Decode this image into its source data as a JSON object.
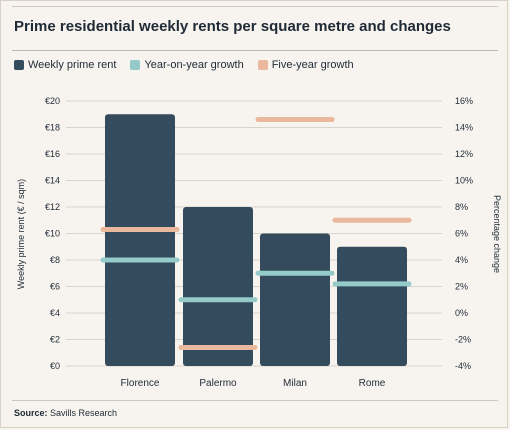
{
  "title": "Prime residential weekly rents per square metre and changes",
  "source_label": "Source:",
  "source_text": "Savills Research",
  "colors": {
    "rent": "#334b5c",
    "yoy": "#94cbc8",
    "five_year": "#eab89c",
    "grid": "#d9d4cb",
    "background": "#f7f4ef"
  },
  "chart_data": {
    "type": "bar",
    "categories": [
      "Florence",
      "Palermo",
      "Milan",
      "Rome"
    ],
    "series": [
      {
        "name": "Weekly prime rent",
        "axis": "left",
        "values": [
          19,
          12,
          10,
          9
        ]
      },
      {
        "name": "Year-on-year growth",
        "axis": "right",
        "values": [
          4.0,
          1.0,
          3.0,
          2.2
        ]
      },
      {
        "name": "Five-year growth",
        "axis": "right",
        "values": [
          6.3,
          -2.6,
          14.6,
          7.0
        ]
      }
    ],
    "ylabel": "Weekly prime rent (€ / sqm)",
    "y2label": "Percentage change",
    "ylim": [
      0,
      20
    ],
    "y2lim": [
      -4,
      16
    ],
    "yticks": [
      "€0",
      "€2",
      "€4",
      "€6",
      "€8",
      "€10",
      "€12",
      "€14",
      "€16",
      "€18",
      "€20"
    ],
    "y2ticks": [
      "-4%",
      "-2%",
      "0%",
      "2%",
      "4%",
      "6%",
      "8%",
      "10%",
      "12%",
      "14%",
      "16%"
    ],
    "grid": true,
    "legend_position": "top-left"
  }
}
